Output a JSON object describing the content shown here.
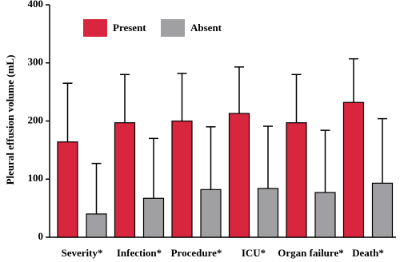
{
  "chart_data": {
    "type": "bar",
    "categories": [
      "Severity*",
      "Infection*",
      "Procedure*",
      "ICU*",
      "Organ failure*",
      "Death*"
    ],
    "series": [
      {
        "name": "Present",
        "color": "#d7263d",
        "values": [
          164,
          197,
          200,
          213,
          197,
          232
        ],
        "errors": [
          101,
          83,
          82,
          80,
          83,
          75
        ]
      },
      {
        "name": "Absent",
        "color": "#a0a0a2",
        "values": [
          40,
          67,
          82,
          84,
          77,
          93
        ],
        "errors": [
          87,
          103,
          108,
          107,
          107,
          111
        ]
      }
    ],
    "y_label": "Pleural effusion volume (mL)",
    "ylim": [
      0,
      400
    ],
    "yticks": [
      0,
      100,
      200,
      300,
      400
    ],
    "legend": "top-left",
    "grid": false
  }
}
